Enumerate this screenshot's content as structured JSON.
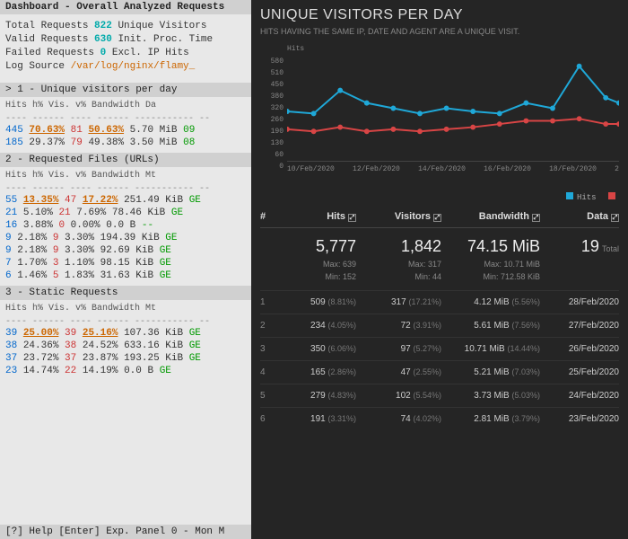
{
  "left": {
    "title": "Dashboard - Overall Analyzed Requests",
    "summary": {
      "total_label": "Total Requests",
      "total_val": "822",
      "unique_label": "Unique Visitors",
      "valid_label": "Valid Requests",
      "valid_val": "630",
      "init_label": "Init. Proc. Time",
      "failed_label": "Failed Requests",
      "failed_val": "0",
      "excl_label": "Excl. IP Hits",
      "log_label": "Log Source",
      "log_path": "/var/log/nginx/flamy_"
    },
    "sec1": {
      "title": "> 1 - Unique visitors per day",
      "head": "Hits     h% Vis.     v%   Bandwidth Da",
      "rows": [
        {
          "hits": "445",
          "hp": "70.63%",
          "vis": "81",
          "vp": "50.63%",
          "bw": "5.70 MiB",
          "d": "09",
          "hi": true
        },
        {
          "hits": "185",
          "hp": "29.37%",
          "vis": "79",
          "vp": "49.38%",
          "bw": "3.50 MiB",
          "d": "08",
          "hi": false
        }
      ]
    },
    "sec2": {
      "title": " 2 - Requested Files (URLs)",
      "head": "Hits     h% Vis.     v%   Bandwidth Mt",
      "rows": [
        {
          "hits": "55",
          "hp": "13.35%",
          "vis": "47",
          "vp": "17.22%",
          "bw": "251.49 KiB",
          "m": "GE",
          "hi": true
        },
        {
          "hits": "21",
          "hp": "5.10%",
          "vis": "21",
          "vp": "7.69%",
          "bw": "78.46 KiB",
          "m": "GE",
          "hi": false
        },
        {
          "hits": "16",
          "hp": "3.88%",
          "vis": "0",
          "vp": "0.00%",
          "bw": "0.0   B",
          "m": "--",
          "hi": false
        },
        {
          "hits": "9",
          "hp": "2.18%",
          "vis": "9",
          "vp": "3.30%",
          "bw": "194.39 KiB",
          "m": "GE",
          "hi": false
        },
        {
          "hits": "9",
          "hp": "2.18%",
          "vis": "9",
          "vp": "3.30%",
          "bw": "92.69 KiB",
          "m": "GE",
          "hi": false
        },
        {
          "hits": "7",
          "hp": "1.70%",
          "vis": "3",
          "vp": "1.10%",
          "bw": "98.15 KiB",
          "m": "GE",
          "hi": false
        },
        {
          "hits": "6",
          "hp": "1.46%",
          "vis": "5",
          "vp": "1.83%",
          "bw": "31.63 KiB",
          "m": "GE",
          "hi": false
        }
      ]
    },
    "sec3": {
      "title": " 3 - Static Requests",
      "head": "Hits     h% Vis.     v%   Bandwidth Mt",
      "rows": [
        {
          "hits": "39",
          "hp": "25.00%",
          "vis": "39",
          "vp": "25.16%",
          "bw": "107.36 KiB",
          "m": "GE",
          "hi": true
        },
        {
          "hits": "38",
          "hp": "24.36%",
          "vis": "38",
          "vp": "24.52%",
          "bw": "633.16 KiB",
          "m": "GE",
          "hi": false
        },
        {
          "hits": "37",
          "hp": "23.72%",
          "vis": "37",
          "vp": "23.87%",
          "bw": "193.25 KiB",
          "m": "GE",
          "hi": false
        },
        {
          "hits": "23",
          "hp": "14.74%",
          "vis": "22",
          "vp": "14.19%",
          "bw": "0.0   B",
          "m": "GE",
          "hi": false
        }
      ]
    },
    "footer": "[?] Help [Enter] Exp. Panel  0 - Mon M"
  },
  "right": {
    "title": "UNIQUE VISITORS PER DAY",
    "subtitle": "HITS HAVING THE SAME IP, DATE AND AGENT ARE A UNIQUE VISIT.",
    "chart": {
      "y_title": "Hits",
      "y_ticks": [
        "580",
        "510",
        "450",
        "380",
        "320",
        "260",
        "190",
        "130",
        "60",
        "0"
      ],
      "x_ticks": [
        "10/Feb/2020",
        "12/Feb/2020",
        "14/Feb/2020",
        "16/Feb/2020",
        "18/Feb/2020",
        "2"
      ],
      "hits_color": "#1fa8d8",
      "visitors_color": "#d84545",
      "hits_points": [
        [
          0,
          0.53
        ],
        [
          0.08,
          0.55
        ],
        [
          0.16,
          0.33
        ],
        [
          0.24,
          0.45
        ],
        [
          0.32,
          0.5
        ],
        [
          0.4,
          0.55
        ],
        [
          0.48,
          0.5
        ],
        [
          0.56,
          0.53
        ],
        [
          0.64,
          0.55
        ],
        [
          0.72,
          0.45
        ],
        [
          0.8,
          0.5
        ],
        [
          0.88,
          0.1
        ],
        [
          0.96,
          0.4
        ],
        [
          1.0,
          0.45
        ]
      ],
      "visitors_points": [
        [
          0,
          0.7
        ],
        [
          0.08,
          0.72
        ],
        [
          0.16,
          0.68
        ],
        [
          0.24,
          0.72
        ],
        [
          0.32,
          0.7
        ],
        [
          0.4,
          0.72
        ],
        [
          0.48,
          0.7
        ],
        [
          0.56,
          0.68
        ],
        [
          0.64,
          0.65
        ],
        [
          0.72,
          0.62
        ],
        [
          0.8,
          0.62
        ],
        [
          0.88,
          0.6
        ],
        [
          0.96,
          0.65
        ],
        [
          1.0,
          0.65
        ]
      ],
      "legend_hits": "Hits"
    },
    "columns": {
      "n": "#",
      "hits": "Hits",
      "visitors": "Visitors",
      "bw": "Bandwidth",
      "data": "Data"
    },
    "summary": {
      "hits": {
        "val": "5,777",
        "max": "Max: 639",
        "min": "Min: 152"
      },
      "visitors": {
        "val": "1,842",
        "max": "Max: 317",
        "min": "Min: 44"
      },
      "bw": {
        "val": "74.15 MiB",
        "max": "Max: 10.71 MiB",
        "min": "Min: 712.58 KiB"
      },
      "data": {
        "val": "19",
        "label": "Total"
      }
    },
    "rows": [
      {
        "n": "1",
        "h": "509",
        "hp": "(8.81%)",
        "v": "317",
        "vp": "(17.21%)",
        "b": "4.12 MiB",
        "bp": "(5.56%)",
        "d": "28/Feb/2020"
      },
      {
        "n": "2",
        "h": "234",
        "hp": "(4.05%)",
        "v": "72",
        "vp": "(3.91%)",
        "b": "5.61 MiB",
        "bp": "(7.56%)",
        "d": "27/Feb/2020"
      },
      {
        "n": "3",
        "h": "350",
        "hp": "(6.06%)",
        "v": "97",
        "vp": "(5.27%)",
        "b": "10.71 MiB",
        "bp": "(14.44%)",
        "d": "26/Feb/2020"
      },
      {
        "n": "4",
        "h": "165",
        "hp": "(2.86%)",
        "v": "47",
        "vp": "(2.55%)",
        "b": "5.21 MiB",
        "bp": "(7.03%)",
        "d": "25/Feb/2020"
      },
      {
        "n": "5",
        "h": "279",
        "hp": "(4.83%)",
        "v": "102",
        "vp": "(5.54%)",
        "b": "3.73 MiB",
        "bp": "(5.03%)",
        "d": "24/Feb/2020"
      },
      {
        "n": "6",
        "h": "191",
        "hp": "(3.31%)",
        "v": "74",
        "vp": "(4.02%)",
        "b": "2.81 MiB",
        "bp": "(3.79%)",
        "d": "23/Feb/2020"
      }
    ]
  }
}
